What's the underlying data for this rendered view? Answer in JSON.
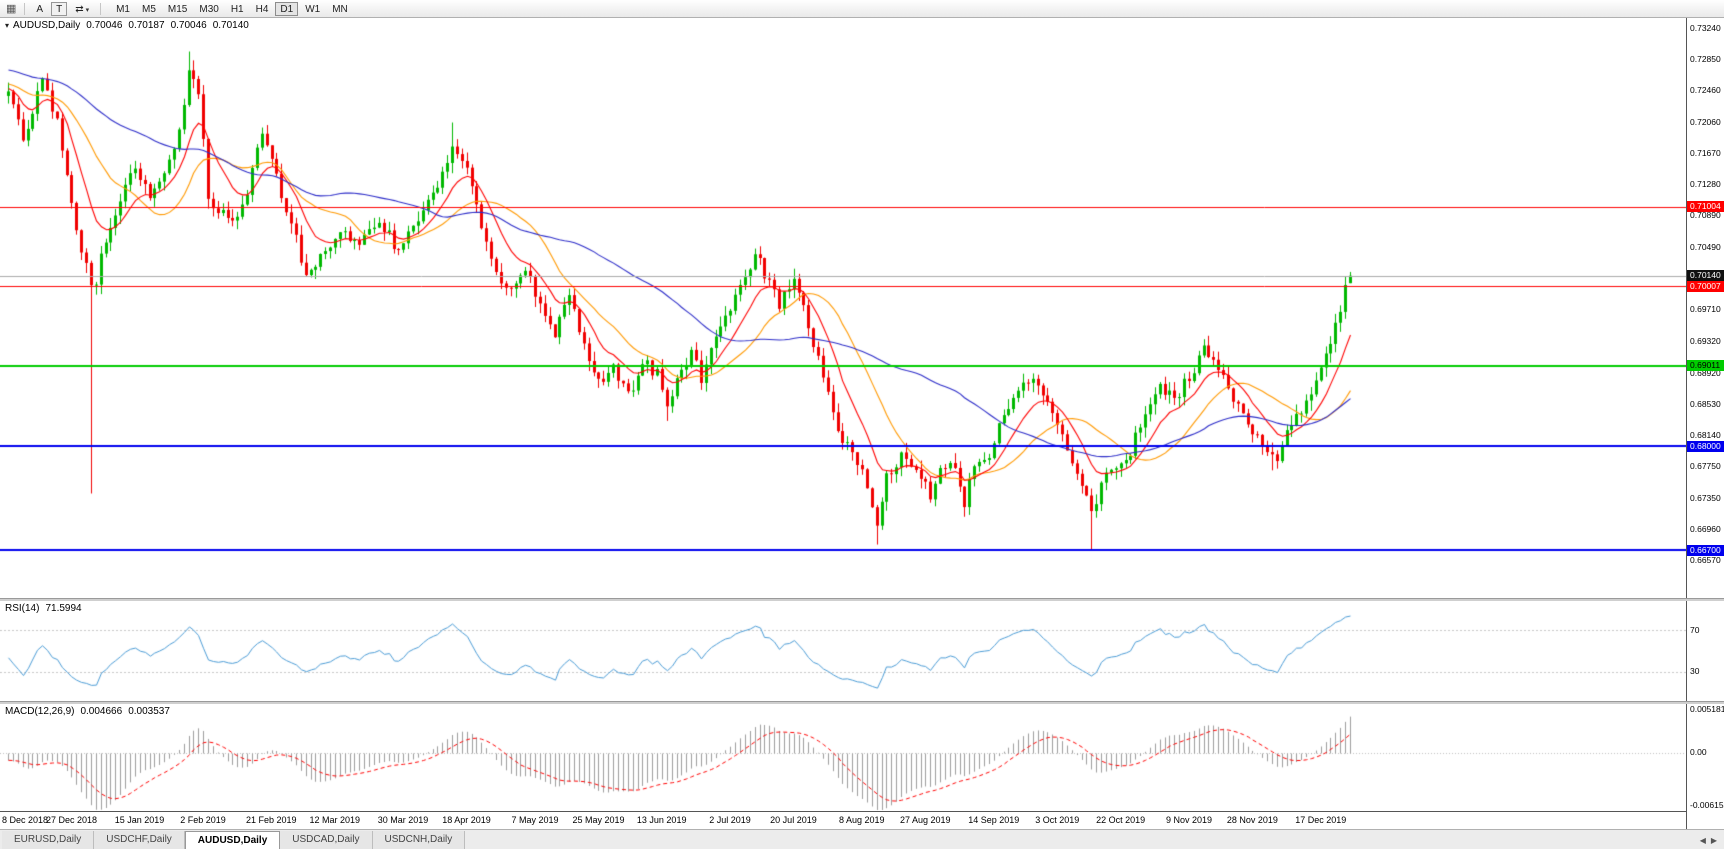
{
  "toolbar": {
    "window_icon": "▦",
    "tool_buttons": [
      {
        "label": "A"
      },
      {
        "label": "T"
      }
    ],
    "cycle_icon": "⇄",
    "caret_icon": "▾",
    "timeframes": [
      "M1",
      "M5",
      "M15",
      "M30",
      "H1",
      "H4",
      "D1",
      "W1",
      "MN"
    ],
    "active_timeframe": "D1"
  },
  "chart": {
    "dropdown_icon": "▾",
    "title": "AUDUSD,Daily",
    "open": "0.70046",
    "high": "0.70187",
    "low": "0.70046",
    "close": "0.70140"
  },
  "chart_data": {
    "type": "candlestick",
    "symbol": "AUDUSD",
    "period": "Daily",
    "bars": 276,
    "colors": {
      "up": "#00B800",
      "down": "#F00000",
      "ma_red": "#FF0000",
      "ma_orange": "#FF9900",
      "ma_blue": "#2C2CC8",
      "rsi": "#4A9BD5",
      "macd_hist": "#9C9C9C",
      "macd_signal": "#FF0000",
      "current_price_line": "#AAAAAA"
    },
    "price_axis": {
      "range": {
        "min": 0.661,
        "max": 0.7337
      },
      "ticks": [
        "0.73240",
        "0.72850",
        "0.72460",
        "0.72060",
        "0.71670",
        "0.71280",
        "0.70890",
        "0.70490",
        "0.69710",
        "0.69320",
        "0.68920",
        "0.68530",
        "0.68140",
        "0.67750",
        "0.67350",
        "0.66960",
        "0.66570"
      ]
    },
    "current_price": {
      "value": 0.7014,
      "label": "0.70140"
    },
    "hlines": [
      {
        "price": 0.71004,
        "label": "0.71004",
        "color": "#FF0000",
        "width": 1,
        "label_fg": "#FFFFFF"
      },
      {
        "price": 0.70007,
        "label": "0.70007",
        "color": "#FF0000",
        "width": 1,
        "label_fg": "#FFFFFF"
      },
      {
        "price": 0.69011,
        "label": "0.69011",
        "color": "#00CC00",
        "width": 2,
        "label_fg": "#000000"
      },
      {
        "price": 0.68,
        "label": "0.68000",
        "color": "#0000EE",
        "width": 2,
        "label_fg": "#FFFFFF"
      },
      {
        "price": 0.667,
        "label": "0.66700",
        "color": "#0000EE",
        "width": 2,
        "label_fg": "#FFFFFF"
      }
    ],
    "moving_averages": [
      {
        "type": "sma",
        "period": 20,
        "color_key": "ma_orange"
      },
      {
        "type": "ema",
        "period": 10,
        "color_key": "ma_red"
      },
      {
        "type": "sma",
        "period": 50,
        "color_key": "ma_blue"
      }
    ],
    "waypoints": [
      [
        0,
        0.7245
      ],
      [
        3,
        0.7186
      ],
      [
        7,
        0.7256
      ],
      [
        10,
        0.7205
      ],
      [
        13,
        0.7105
      ],
      [
        15,
        0.7042
      ],
      [
        16,
        0.703
      ],
      [
        17,
        0.6998
      ],
      [
        18,
        0.701
      ],
      [
        20,
        0.7062
      ],
      [
        23,
        0.7115
      ],
      [
        26,
        0.715
      ],
      [
        29,
        0.7118
      ],
      [
        32,
        0.7142
      ],
      [
        34,
        0.7178
      ],
      [
        36,
        0.7222
      ],
      [
        37,
        0.7268
      ],
      [
        39,
        0.7242
      ],
      [
        41,
        0.7118
      ],
      [
        43,
        0.7092
      ],
      [
        46,
        0.7082
      ],
      [
        49,
        0.7122
      ],
      [
        52,
        0.719
      ],
      [
        55,
        0.7135
      ],
      [
        58,
        0.7082
      ],
      [
        61,
        0.7008
      ],
      [
        64,
        0.7042
      ],
      [
        68,
        0.7072
      ],
      [
        72,
        0.7048
      ],
      [
        76,
        0.7088
      ],
      [
        80,
        0.7042
      ],
      [
        84,
        0.7088
      ],
      [
        88,
        0.7122
      ],
      [
        91,
        0.7182
      ],
      [
        94,
        0.7152
      ],
      [
        97,
        0.7068
      ],
      [
        100,
        0.7012
      ],
      [
        103,
        0.6992
      ],
      [
        106,
        0.7022
      ],
      [
        109,
        0.6982
      ],
      [
        112,
        0.6938
      ],
      [
        115,
        0.6988
      ],
      [
        118,
        0.6932
      ],
      [
        121,
        0.6878
      ],
      [
        124,
        0.6898
      ],
      [
        127,
        0.6862
      ],
      [
        130,
        0.6905
      ],
      [
        133,
        0.689
      ],
      [
        135,
        0.6848
      ],
      [
        137,
        0.6888
      ],
      [
        140,
        0.692
      ],
      [
        142,
        0.6885
      ],
      [
        144,
        0.6928
      ],
      [
        147,
        0.6962
      ],
      [
        150,
        0.6998
      ],
      [
        153,
        0.704
      ],
      [
        155,
        0.7018
      ],
      [
        158,
        0.6978
      ],
      [
        161,
        0.7008
      ],
      [
        164,
        0.6952
      ],
      [
        167,
        0.6892
      ],
      [
        170,
        0.6818
      ],
      [
        173,
        0.6798
      ],
      [
        176,
        0.6752
      ],
      [
        178,
        0.6702
      ],
      [
        180,
        0.6762
      ],
      [
        183,
        0.6788
      ],
      [
        186,
        0.6772
      ],
      [
        189,
        0.6738
      ],
      [
        191,
        0.6778
      ],
      [
        194,
        0.6768
      ],
      [
        196,
        0.6728
      ],
      [
        198,
        0.6775
      ],
      [
        201,
        0.6792
      ],
      [
        204,
        0.6842
      ],
      [
        207,
        0.6872
      ],
      [
        210,
        0.689
      ],
      [
        213,
        0.6858
      ],
      [
        216,
        0.6808
      ],
      [
        218,
        0.6772
      ],
      [
        220,
        0.6748
      ],
      [
        222,
        0.6718
      ],
      [
        224,
        0.6752
      ],
      [
        227,
        0.6775
      ],
      [
        230,
        0.6795
      ],
      [
        233,
        0.6842
      ],
      [
        236,
        0.6878
      ],
      [
        239,
        0.6858
      ],
      [
        242,
        0.6888
      ],
      [
        245,
        0.6922
      ],
      [
        248,
        0.6898
      ],
      [
        251,
        0.6862
      ],
      [
        254,
        0.6832
      ],
      [
        257,
        0.6802
      ],
      [
        260,
        0.6788
      ],
      [
        263,
        0.6828
      ],
      [
        266,
        0.6852
      ],
      [
        268,
        0.6882
      ],
      [
        270,
        0.6912
      ],
      [
        272,
        0.6952
      ],
      [
        274,
        0.6998
      ],
      [
        275,
        0.7014
      ]
    ],
    "overrides": [
      {
        "i": 17,
        "low": 0.6741
      },
      {
        "i": 37,
        "high": 0.7295
      },
      {
        "i": 91,
        "high": 0.7206
      },
      {
        "i": 135,
        "low": 0.6832
      },
      {
        "i": 153,
        "high": 0.7048
      },
      {
        "i": 178,
        "low": 0.6677
      },
      {
        "i": 222,
        "low": 0.667
      },
      {
        "i": 259,
        "low": 0.677
      },
      {
        "i": 275,
        "open": 0.70046,
        "high": 0.70187,
        "low": 0.70046,
        "close": 0.7014
      }
    ],
    "x_labels": [
      {
        "bar": 0,
        "label": "8 Dec 2018"
      },
      {
        "bar": 13,
        "label": "27 Dec 2018"
      },
      {
        "bar": 27,
        "label": "15 Jan 2019"
      },
      {
        "bar": 40,
        "label": "2 Feb 2019"
      },
      {
        "bar": 54,
        "label": "21 Feb 2019"
      },
      {
        "bar": 67,
        "label": "12 Mar 2019"
      },
      {
        "bar": 81,
        "label": "30 Mar 2019"
      },
      {
        "bar": 94,
        "label": "18 Apr 2019"
      },
      {
        "bar": 108,
        "label": "7 May 2019"
      },
      {
        "bar": 121,
        "label": "25 May 2019"
      },
      {
        "bar": 134,
        "label": "13 Jun 2019"
      },
      {
        "bar": 148,
        "label": "2 Jul 2019"
      },
      {
        "bar": 161,
        "label": "20 Jul 2019"
      },
      {
        "bar": 175,
        "label": "8 Aug 2019"
      },
      {
        "bar": 188,
        "label": "27 Aug 2019"
      },
      {
        "bar": 202,
        "label": "14 Sep 2019"
      },
      {
        "bar": 215,
        "label": "3 Oct 2019"
      },
      {
        "bar": 228,
        "label": "22 Oct 2019"
      },
      {
        "bar": 242,
        "label": "9 Nov 2019"
      },
      {
        "bar": 255,
        "label": "28 Nov 2019"
      },
      {
        "bar": 269,
        "label": "17 Dec 2019"
      }
    ],
    "rsi": {
      "name": "RSI(14)",
      "value": "71.5994",
      "period": 14,
      "levels": [
        70,
        30
      ],
      "axis_labels": [
        "70",
        "30"
      ],
      "range": {
        "min": 2,
        "max": 98
      }
    },
    "macd": {
      "name": "MACD(12,26,9)",
      "values": [
        "0.004666",
        "0.003537"
      ],
      "fast": 12,
      "slow": 26,
      "signal": 9,
      "range": {
        "min": -0.006152,
        "max": 0.005181
      },
      "axis_labels": [
        {
          "v": 0.005181,
          "t": "0.005181"
        },
        {
          "v": 0,
          "t": "0.00"
        },
        {
          "v": -0.006152,
          "t": "-0.006152"
        }
      ]
    }
  },
  "tabs": [
    {
      "label": "EURUSD,Daily",
      "active": false
    },
    {
      "label": "USDCHF,Daily",
      "active": false
    },
    {
      "label": "AUDUSD,Daily",
      "active": true
    },
    {
      "label": "USDCAD,Daily",
      "active": false
    },
    {
      "label": "USDCNH,Daily",
      "active": false
    }
  ],
  "tabbar": {
    "scroll_left_icon": "◀",
    "scroll_right_icon": "▶"
  }
}
